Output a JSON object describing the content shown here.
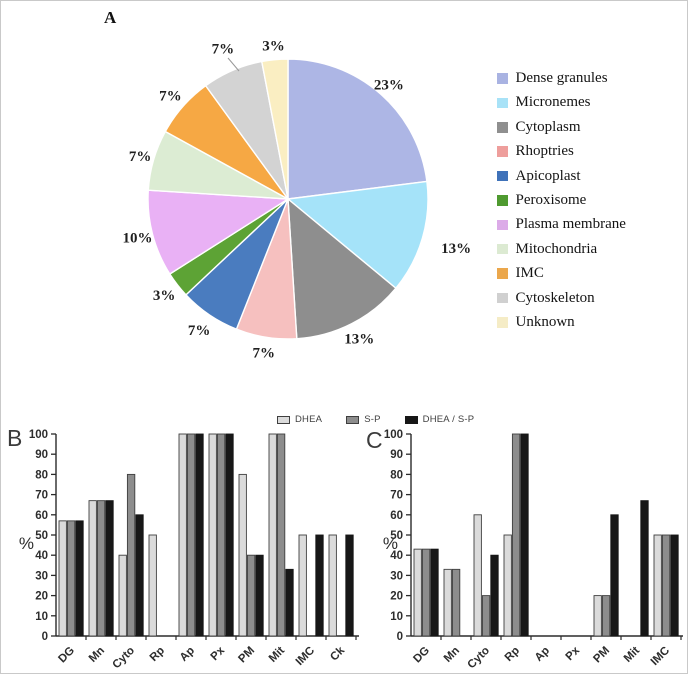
{
  "figure": {
    "panel_labels": {
      "a": "A",
      "b": "B",
      "c": "C"
    }
  },
  "bar_legend": [
    {
      "label": "DHEA",
      "color": "#dbdbdb",
      "stroke": "#3f3f3f"
    },
    {
      "label": "S-P",
      "color": "#8d8d8d",
      "stroke": "#3f3f3f"
    },
    {
      "label": "DHEA / S-P",
      "color": "#171717",
      "stroke": "#171717"
    }
  ],
  "chart_data": [
    {
      "panel": "A",
      "type": "pie",
      "legend_position": "right",
      "slices": [
        {
          "label": "Dense granules",
          "value": 23,
          "pct_label": "23%",
          "color": "#adb6e5",
          "legend_color": "#a9b3e2"
        },
        {
          "label": "Micronemes",
          "value": 13,
          "pct_label": "13%",
          "color": "#a5e3f9",
          "legend_color": "#a8e2f7"
        },
        {
          "label": "Cytoplasm",
          "value": 13,
          "pct_label": "13%",
          "color": "#8e8e8e",
          "legend_color": "#8f8f8f"
        },
        {
          "label": "Rhoptries",
          "value": 7,
          "pct_label": "7%",
          "color": "#f6c0bf",
          "legend_color": "#ee9e9c"
        },
        {
          "label": "Apicoplast",
          "value": 7,
          "pct_label": "7%",
          "color": "#4a7cbf",
          "legend_color": "#3f72b9"
        },
        {
          "label": "Peroxisome",
          "value": 3,
          "pct_label": "3%",
          "color": "#5da335",
          "legend_color": "#4f9a30"
        },
        {
          "label": "Plasma membrane",
          "value": 10,
          "pct_label": "10%",
          "color": "#e9b1f5",
          "legend_color": "#dcabe8"
        },
        {
          "label": "Mitochondria",
          "value": 7,
          "pct_label": "7%",
          "color": "#dcecd3",
          "legend_color": "#dcead2"
        },
        {
          "label": "IMC",
          "value": 7,
          "pct_label": "7%",
          "color": "#f6a844",
          "legend_color": "#eba74c"
        },
        {
          "label": "Cytoskeleton",
          "value": 7,
          "pct_label": "7%",
          "color": "#d3d3d3",
          "legend_color": "#d0d0d0"
        },
        {
          "label": "Unknown",
          "value": 3,
          "pct_label": "3%",
          "color": "#faeec2",
          "legend_color": "#f5ecc6"
        }
      ]
    },
    {
      "panel": "B",
      "type": "bar",
      "ylabel": "%",
      "ylim": [
        0,
        100
      ],
      "yticks": [
        0,
        10,
        20,
        30,
        40,
        50,
        60,
        70,
        80,
        90,
        100
      ],
      "legend_position": "top",
      "categories": [
        "DG",
        "Mn",
        "Cyto",
        "Rp",
        "Ap",
        "Px",
        "PM",
        "Mit",
        "IMC",
        "Ck"
      ],
      "series": [
        {
          "name": "DHEA",
          "values": [
            57,
            67,
            40,
            50,
            100,
            100,
            80,
            100,
            50,
            50
          ]
        },
        {
          "name": "S-P",
          "values": [
            57,
            67,
            80,
            0,
            100,
            100,
            40,
            100,
            0,
            0
          ]
        },
        {
          "name": "DHEA / S-P",
          "values": [
            57,
            67,
            60,
            0,
            100,
            100,
            40,
            33,
            50,
            50
          ]
        }
      ]
    },
    {
      "panel": "C",
      "type": "bar",
      "ylabel": "%",
      "ylim": [
        0,
        100
      ],
      "yticks": [
        0,
        10,
        20,
        30,
        40,
        50,
        60,
        70,
        80,
        90,
        100
      ],
      "legend_position": "top",
      "categories": [
        "DG",
        "Mn",
        "Cyto",
        "Rp",
        "Ap",
        "Px",
        "PM",
        "Mit",
        "IMC"
      ],
      "series": [
        {
          "name": "DHEA",
          "values": [
            43,
            33,
            60,
            50,
            0,
            0,
            20,
            0,
            50
          ]
        },
        {
          "name": "S-P",
          "values": [
            43,
            33,
            20,
            100,
            0,
            0,
            20,
            0,
            50
          ]
        },
        {
          "name": "DHEA / S-P",
          "values": [
            43,
            0,
            40,
            100,
            0,
            0,
            60,
            67,
            50
          ]
        }
      ]
    }
  ]
}
